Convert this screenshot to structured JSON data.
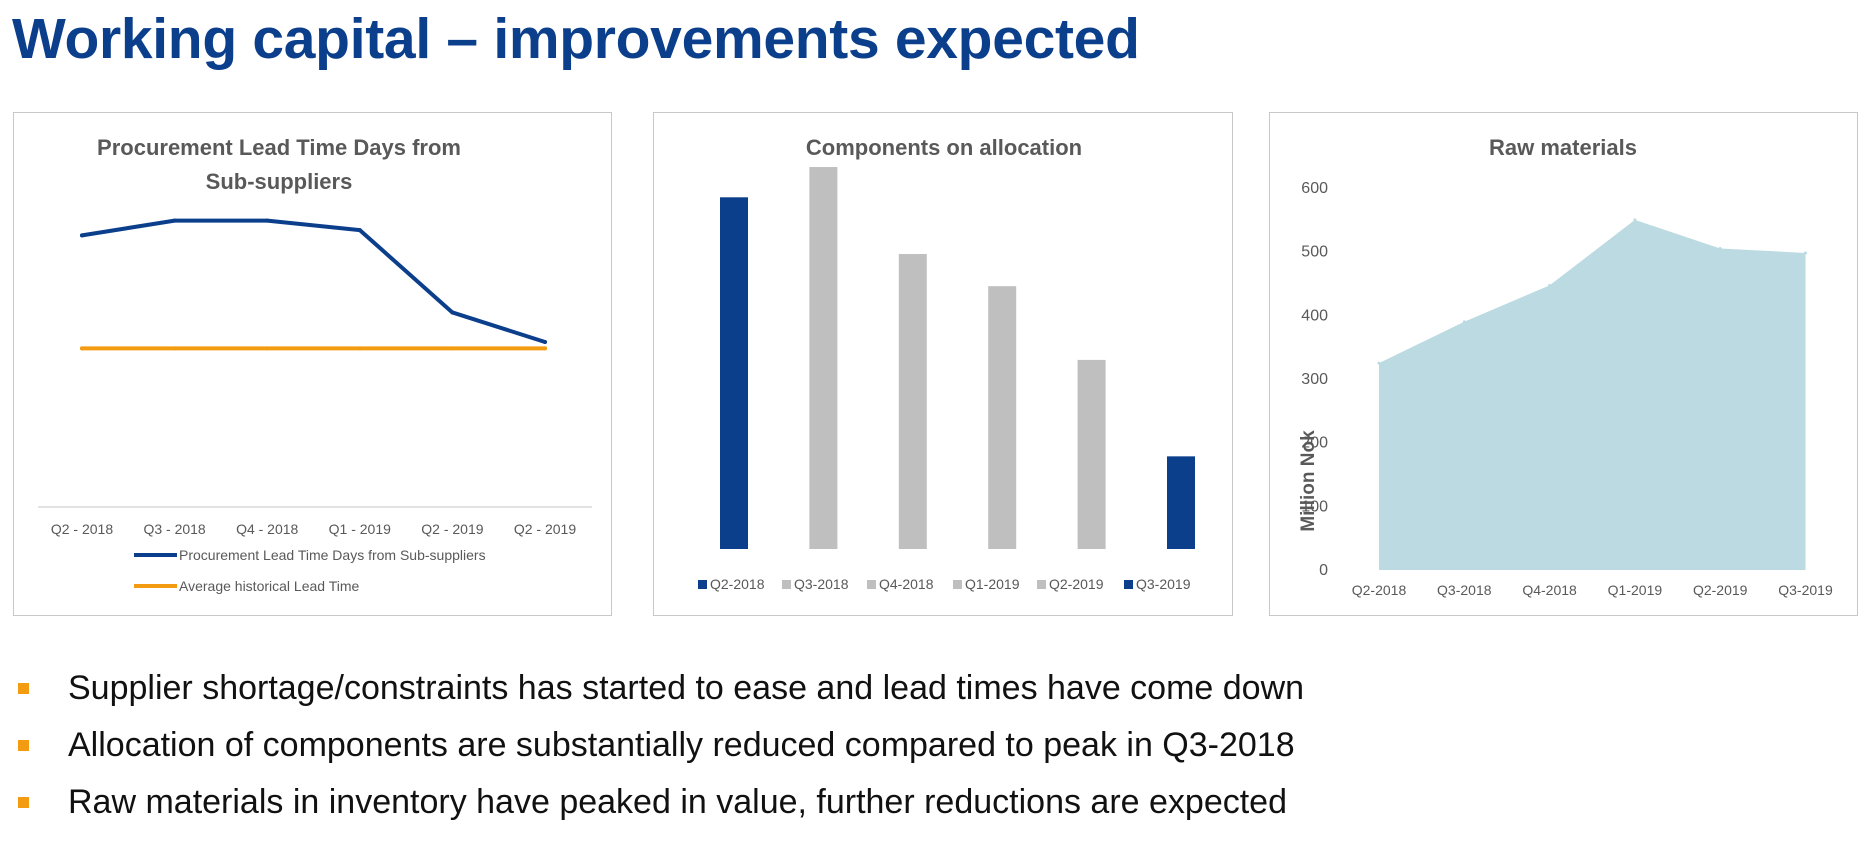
{
  "page": {
    "title": "Working capital – improvements expected",
    "bullets": [
      "Supplier shortage/constraints has started to ease and lead times have come down",
      "Allocation of components are substantially reduced compared to peak in Q3-2018",
      "Raw materials in inventory have peaked in value, further reductions are expected"
    ],
    "bullet_color": "#f39c12",
    "title_color": "#0b3f8c"
  },
  "chart_data": [
    {
      "type": "line",
      "title_lines": [
        "Procurement Lead Time Days from",
        "Sub-suppliers"
      ],
      "categories": [
        "Q2 - 2018",
        "Q3 - 2018",
        "Q4 - 2018",
        "Q1 - 2019",
        "Q2 - 2019",
        "Q2 - 2019"
      ],
      "series": [
        {
          "name": "Procurement Lead Time Days from Sub-suppliers",
          "color": "#0b3f8c",
          "values": [
            91.5,
            98.5,
            98.5,
            94,
            55,
            41
          ]
        },
        {
          "name": "Average historical Lead Time",
          "color": "#f39c12",
          "values": [
            38,
            38,
            38,
            38,
            38,
            38
          ]
        }
      ],
      "ylim": [
        -40,
        140
      ],
      "y_axis_shown": false,
      "grid": false,
      "legend": "bottom"
    },
    {
      "type": "bar",
      "title": "Components on allocation",
      "categories": [
        "Q2-2018",
        "Q3-2018",
        "Q4-2018",
        "Q1-2019",
        "Q2-2019",
        "Q3-2019"
      ],
      "values": [
        93,
        101,
        78,
        69.5,
        50,
        24.5
      ],
      "colors": [
        "#0b3f8c",
        "#bfbfbf",
        "#bfbfbf",
        "#bfbfbf",
        "#bfbfbf",
        "#0b3f8c"
      ],
      "ylim": [
        0,
        110
      ],
      "y_axis_shown": false,
      "grid": false,
      "legend": "bottom"
    },
    {
      "type": "area",
      "title": "Raw materials",
      "categories": [
        "Q2-2018",
        "Q3-2018",
        "Q4-2018",
        "Q1-2019",
        "Q2-2019",
        "Q3-2019"
      ],
      "values": [
        325,
        390,
        447,
        550,
        505,
        498
      ],
      "ylabel": "Million Nok",
      "ylim": [
        0,
        600
      ],
      "yticks": [
        "0",
        "100",
        "200",
        "300",
        "400",
        "500",
        "600"
      ],
      "color": "#bcdae1",
      "grid": false,
      "legend": "none"
    }
  ]
}
